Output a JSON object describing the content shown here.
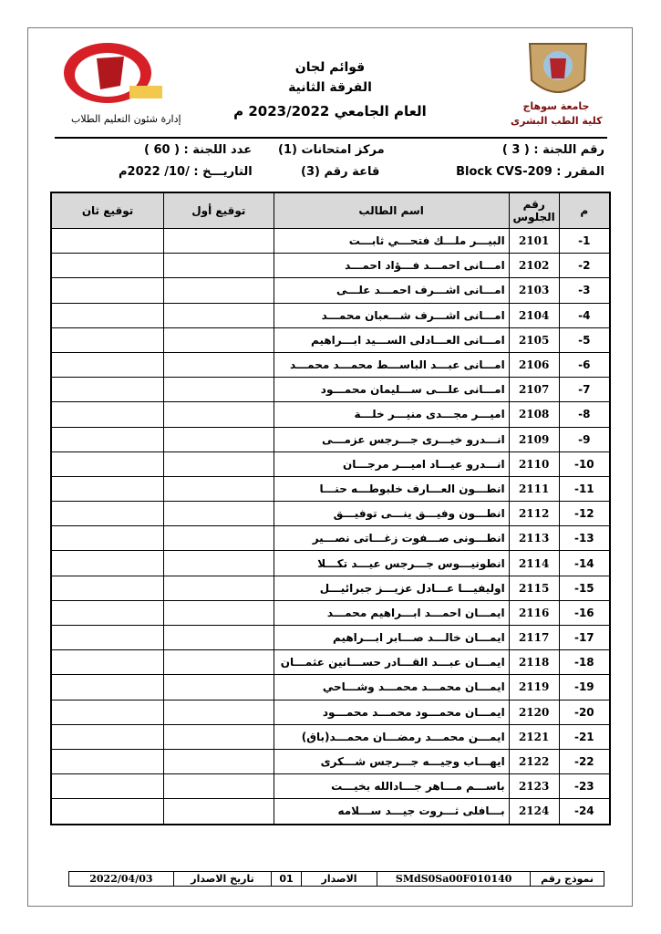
{
  "header": {
    "title": "قوائم لجان",
    "subtitle": "الفرقة الثانية",
    "year": "العام الجامعي 2023/2022 م",
    "left_department": "إدارة شئون التعليم الطلاب",
    "right_university": "جامعة سوهاج",
    "right_faculty": "كلية الطب البشرى"
  },
  "info": {
    "committee_no": "رقم اللجنة : ( 3 )",
    "exam_center": "مركز امتحانات (1)",
    "committee_count": "عدد اللجنة : ( 60 )",
    "course": "المقرر : Block CVS-209",
    "hall": "قاعة رقم (3)",
    "date": "التاريـــخ : /10/ 2022م"
  },
  "table": {
    "columns": [
      "م",
      "رقم الجلوس",
      "اسم الطالب",
      "توقيع أول",
      "توقيع ثان"
    ],
    "rows": [
      [
        "-1",
        2101,
        "البيـــر ملـــك فتحـــي ثابـــت"
      ],
      [
        "-2",
        2102,
        "امـــانى احمـــد فـــؤاد احمـــد"
      ],
      [
        "-3",
        2103,
        "امـــانى اشـــرف احمـــد علـــى"
      ],
      [
        "-4",
        2104,
        "امـــانى اشـــرف شـــعبان محمـــد"
      ],
      [
        "-5",
        2105,
        "امـــانى العـــادلى الســـيد ابـــراهيم"
      ],
      [
        "-6",
        2106,
        "امـــانى عبـــد الباســـط محمـــد محمـــد"
      ],
      [
        "-7",
        2107,
        "امـــانى علـــى ســـليمان محمـــود"
      ],
      [
        "-8",
        2108,
        "اميـــر مجـــدى منيـــر خلـــة"
      ],
      [
        "-9",
        2109,
        "انـــدرو خيـــرى جـــرجس عزمـــى"
      ],
      [
        "-10",
        2110,
        "انـــدرو عيـــاد اميـــر مرجـــان"
      ],
      [
        "-11",
        2111,
        "انطـــون العـــارف خلبوطـــه حنـــا"
      ],
      [
        "-12",
        2112,
        "انطـــون وفيـــق ينـــى توفيـــق"
      ],
      [
        "-13",
        2113,
        "انطـــونى صـــفوت زغـــاتى نصـــير"
      ],
      [
        "-14",
        2114,
        "انطونيـــوس جـــرجس عيـــد تكـــلا"
      ],
      [
        "-15",
        2115,
        "اوليفيـــا عـــادل عزيـــز جبرائيـــل"
      ],
      [
        "-16",
        2116,
        "ايمـــان احمـــد ابـــراهيم محمـــد"
      ],
      [
        "-17",
        2117,
        "ايمـــان خالـــد صـــابر ابـــراهيم"
      ],
      [
        "-18",
        2118,
        "ايمـــان عبـــد القـــادر حســـانين عثمـــان"
      ],
      [
        "-19",
        2119,
        "ايمـــان محمـــد محمـــد وشـــاحي"
      ],
      [
        "-20",
        2120,
        "ايمـــان محمـــود محمـــد محمـــود"
      ],
      [
        "-21",
        2121,
        "ايمـــن محمـــد رمضـــان محمـــد(باق)"
      ],
      [
        "-22",
        2122,
        "ايهـــاب وجيـــه جـــرجس شـــكرى"
      ],
      [
        "-23",
        2123,
        "باســـم مـــاهر جـــادالله بخيـــت"
      ],
      [
        "-24",
        2124,
        "بـــافلى ثـــروت جيـــد ســـلامه"
      ]
    ]
  },
  "footer": {
    "form_label": "نموذج رقم",
    "form_code": "SMdS0Sa00F010140",
    "version_label": "الاصدار",
    "version": "01",
    "issue_label": "تاريخ الاصدار",
    "issue_date": "2022/04/03"
  }
}
